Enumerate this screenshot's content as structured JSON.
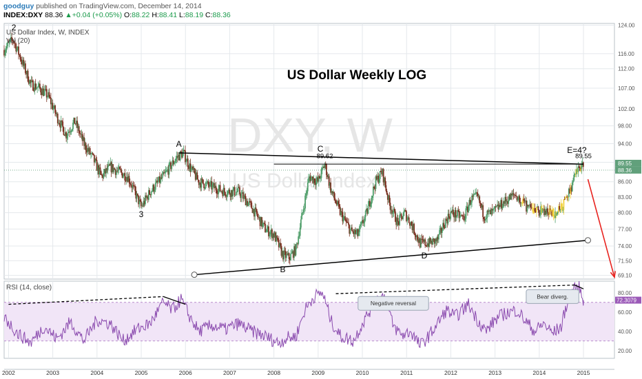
{
  "header": {
    "author": "goodguy",
    "published": "published on TradingView.com, December 14, 2014",
    "symbol": "INDEX:DXY",
    "last": "88.36",
    "change_arrow": "▲",
    "change": "+0.04 (+0.05%)",
    "open_label": "O:",
    "open": "88.22",
    "high_label": "H:",
    "high": "88.41",
    "low_label": "L:",
    "low": "88.19",
    "close_label": "C:",
    "close": "88.36"
  },
  "chart_data": {
    "type": "candlestick",
    "title": "US Dollar Weekly   LOG",
    "pane_label": "US Dollar Index, W, INDEX",
    "volume_label": "Vol (20)",
    "watermark_symbol": "DXY, W",
    "watermark_name": "US Dollar Index",
    "log_scale": true,
    "y_ticks": [
      124.0,
      116.0,
      112.0,
      107.0,
      102.0,
      98.0,
      94.0,
      90.0,
      86.0,
      83.0,
      80.0,
      77.0,
      74.0,
      71.5,
      69.1
    ],
    "y_range": [
      68.5,
      124.5
    ],
    "x_ticks": [
      "2002",
      "2003",
      "2004",
      "2005",
      "2006",
      "2007",
      "2008",
      "2009",
      "2010",
      "2011",
      "2012",
      "2013",
      "2014",
      "2015"
    ],
    "x_range": [
      2001.9,
      2015.7
    ],
    "price_path": [
      [
        2001.9,
        117
      ],
      [
        2002.1,
        120
      ],
      [
        2002.3,
        114
      ],
      [
        2002.5,
        108
      ],
      [
        2002.7,
        107
      ],
      [
        2002.9,
        105
      ],
      [
        2003.1,
        100
      ],
      [
        2003.3,
        96
      ],
      [
        2003.5,
        99
      ],
      [
        2003.7,
        94
      ],
      [
        2003.9,
        91
      ],
      [
        2004.1,
        87
      ],
      [
        2004.3,
        89
      ],
      [
        2004.5,
        88
      ],
      [
        2004.7,
        87
      ],
      [
        2004.9,
        83
      ],
      [
        2005.0,
        81
      ],
      [
        2005.2,
        84
      ],
      [
        2005.5,
        87
      ],
      [
        2005.8,
        91
      ],
      [
        2005.95,
        92
      ],
      [
        2006.1,
        89
      ],
      [
        2006.3,
        86
      ],
      [
        2006.6,
        85
      ],
      [
        2006.9,
        84
      ],
      [
        2007.2,
        84
      ],
      [
        2007.5,
        81
      ],
      [
        2007.8,
        77
      ],
      [
        2008.0,
        76
      ],
      [
        2008.2,
        72.5
      ],
      [
        2008.35,
        72
      ],
      [
        2008.5,
        73.5
      ],
      [
        2008.65,
        80
      ],
      [
        2008.8,
        87
      ],
      [
        2009.0,
        86
      ],
      [
        2009.15,
        89.6
      ],
      [
        2009.3,
        84
      ],
      [
        2009.5,
        80
      ],
      [
        2009.75,
        76.5
      ],
      [
        2009.9,
        76
      ],
      [
        2010.1,
        80
      ],
      [
        2010.3,
        86
      ],
      [
        2010.45,
        88
      ],
      [
        2010.6,
        82
      ],
      [
        2010.8,
        78
      ],
      [
        2010.95,
        80
      ],
      [
        2011.1,
        78
      ],
      [
        2011.3,
        74.5
      ],
      [
        2011.5,
        74.5
      ],
      [
        2011.7,
        75
      ],
      [
        2011.85,
        78
      ],
      [
        2012.0,
        80
      ],
      [
        2012.3,
        79
      ],
      [
        2012.45,
        82.5
      ],
      [
        2012.6,
        83
      ],
      [
        2012.75,
        79.5
      ],
      [
        2012.95,
        80
      ],
      [
        2013.2,
        82
      ],
      [
        2013.45,
        83.5
      ],
      [
        2013.6,
        82
      ],
      [
        2013.8,
        80.5
      ],
      [
        2013.95,
        80.5
      ],
      [
        2014.2,
        80
      ],
      [
        2014.4,
        80
      ],
      [
        2014.55,
        81.5
      ],
      [
        2014.7,
        84.5
      ],
      [
        2014.85,
        88
      ],
      [
        2014.96,
        89.55
      ],
      [
        2015.0,
        88.4
      ]
    ],
    "last_price": 88.36,
    "last_price_label": "88.36",
    "prev_high_label": "89.55",
    "wave_labels": [
      {
        "text": "2",
        "x": 2002.12,
        "y": 122.5
      },
      {
        "text": "3",
        "x": 2005.0,
        "y": 79.2
      },
      {
        "text": "A",
        "x": 2005.85,
        "y": 93.3
      },
      {
        "text": "B",
        "x": 2008.2,
        "y": 69.6
      },
      {
        "text": "C",
        "x": 2009.05,
        "y": 92.3
      },
      {
        "text": "D",
        "x": 2011.4,
        "y": 71.9
      },
      {
        "text": "E=4?",
        "x": 2014.85,
        "y": 92.0
      }
    ],
    "price_annotations": [
      {
        "text": "89.62",
        "x": 2009.15,
        "y": 90.9
      },
      {
        "text": "89.55",
        "x": 2015.0,
        "y": 90.9
      }
    ],
    "trendlines": [
      {
        "name": "upper",
        "x1": 2005.85,
        "y1": 92.0,
        "x2": 2015.0,
        "y2": 89.6
      },
      {
        "name": "lower",
        "x1": 2006.2,
        "y1": 69.2,
        "x2": 2015.1,
        "y2": 75.0
      },
      {
        "name": "c-level",
        "x1": 2008.0,
        "y1": 89.62,
        "x2": 2015.0,
        "y2": 89.62
      }
    ],
    "forecast_arrow": {
      "x1": 2015.1,
      "y1": 86.5,
      "x2": 2015.7,
      "y2": 68.8
    },
    "rsi": {
      "label": "RSI (14, close)",
      "ticks": [
        80.0,
        60.0,
        40.0,
        20.0
      ],
      "overbought": 70,
      "oversold": 30,
      "last": 72.3079,
      "last_label": "72.3079",
      "path": [
        [
          2001.9,
          55
        ],
        [
          2002.2,
          38
        ],
        [
          2002.5,
          28
        ],
        [
          2002.8,
          45
        ],
        [
          2003.1,
          32
        ],
        [
          2003.4,
          50
        ],
        [
          2003.7,
          30
        ],
        [
          2004.0,
          52
        ],
        [
          2004.3,
          48
        ],
        [
          2004.6,
          30
        ],
        [
          2004.9,
          42
        ],
        [
          2005.2,
          48
        ],
        [
          2005.5,
          70
        ],
        [
          2005.7,
          62
        ],
        [
          2005.9,
          73
        ],
        [
          2006.1,
          55
        ],
        [
          2006.3,
          40
        ],
        [
          2006.6,
          46
        ],
        [
          2006.9,
          42
        ],
        [
          2007.2,
          48
        ],
        [
          2007.5,
          40
        ],
        [
          2007.8,
          35
        ],
        [
          2008.1,
          28
        ],
        [
          2008.3,
          33
        ],
        [
          2008.5,
          35
        ],
        [
          2008.7,
          62
        ],
        [
          2008.9,
          76
        ],
        [
          2009.1,
          80
        ],
        [
          2009.3,
          50
        ],
        [
          2009.5,
          35
        ],
        [
          2009.8,
          30
        ],
        [
          2010.0,
          48
        ],
        [
          2010.3,
          72
        ],
        [
          2010.5,
          77
        ],
        [
          2010.7,
          45
        ],
        [
          2010.9,
          36
        ],
        [
          2011.1,
          40
        ],
        [
          2011.3,
          25
        ],
        [
          2011.5,
          35
        ],
        [
          2011.7,
          48
        ],
        [
          2011.9,
          62
        ],
        [
          2012.1,
          55
        ],
        [
          2012.4,
          68
        ],
        [
          2012.6,
          52
        ],
        [
          2012.8,
          40
        ],
        [
          2013.0,
          52
        ],
        [
          2013.2,
          58
        ],
        [
          2013.5,
          62
        ],
        [
          2013.7,
          50
        ],
        [
          2013.9,
          40
        ],
        [
          2014.1,
          48
        ],
        [
          2014.3,
          38
        ],
        [
          2014.5,
          45
        ],
        [
          2014.6,
          65
        ],
        [
          2014.75,
          82
        ],
        [
          2014.9,
          86
        ],
        [
          2015.0,
          72.3
        ]
      ],
      "divergence_lines": [
        {
          "x1": 2002.0,
          "y1": 68,
          "x2": 2005.5,
          "y2": 76,
          "style": "dashed"
        },
        {
          "x1": 2005.5,
          "y1": 76,
          "x2": 2006.0,
          "y2": 68,
          "style": "solid"
        },
        {
          "x1": 2009.4,
          "y1": 79,
          "x2": 2014.8,
          "y2": 88,
          "style": "dashed"
        },
        {
          "x1": 2014.8,
          "y1": 88,
          "x2": 2015.0,
          "y2": 84,
          "style": "solid"
        }
      ],
      "callouts": [
        {
          "text": "Negative reversal",
          "x": 2010.7,
          "y": 69
        },
        {
          "text": "Bear diverg.",
          "x": 2014.3,
          "y": 76
        }
      ]
    }
  },
  "colors": {
    "up": "#4f9e6a",
    "down": "#7a3020",
    "rsi": "#8a4aae",
    "rsi_band": "#f1e5f7",
    "arrow": "#e8231f",
    "last_tag": "#61a07b",
    "rsi_tag": "#9b5ab8",
    "grid": "#e4e8ec",
    "wave_dots": "#f2d23c"
  }
}
